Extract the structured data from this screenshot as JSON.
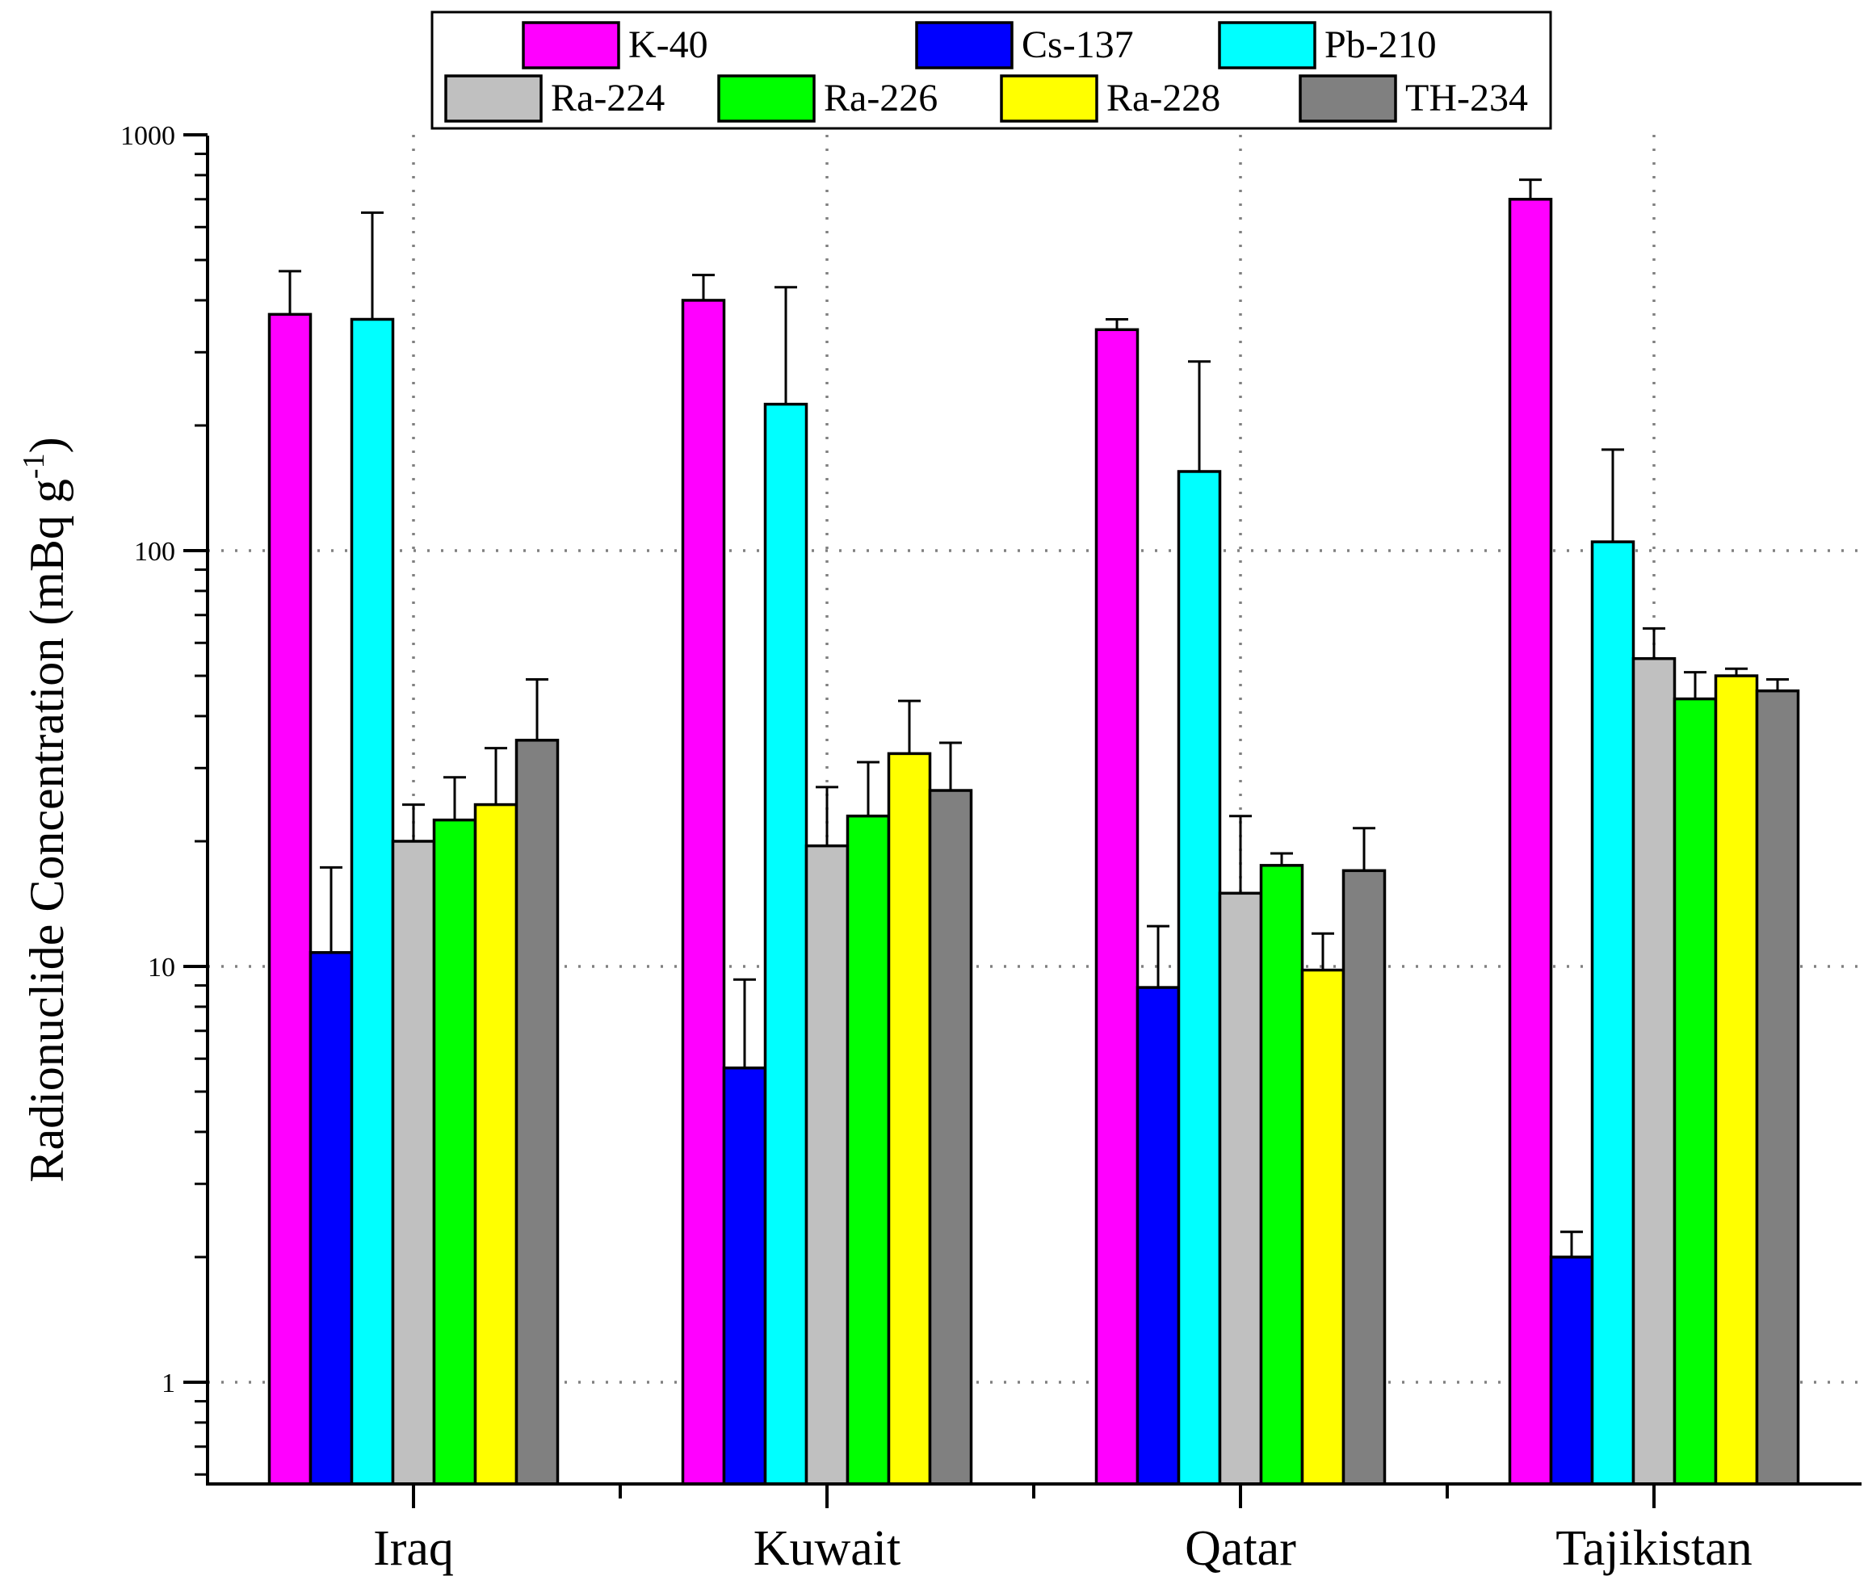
{
  "chart_data": {
    "type": "bar",
    "categories": [
      "Iraq",
      "Kuwait",
      "Qatar",
      "Tajikistan"
    ],
    "series": [
      {
        "name": "K-40",
        "color": "#FF00FF",
        "values": [
          370,
          400,
          340,
          700
        ],
        "errors": [
          100,
          60,
          20,
          80
        ]
      },
      {
        "name": "Cs-137",
        "color": "#0000FF",
        "values": [
          10.8,
          5.7,
          8.9,
          2.0
        ],
        "errors": [
          6.5,
          3.6,
          3.6,
          0.3
        ]
      },
      {
        "name": "Pb-210",
        "color": "#00FFFF",
        "values": [
          360,
          225,
          155,
          105
        ],
        "errors": [
          290,
          205,
          130,
          70
        ]
      },
      {
        "name": "Ra-224",
        "color": "#C0C0C0",
        "values": [
          20,
          19.5,
          15,
          55
        ],
        "errors": [
          4.5,
          7.5,
          8,
          10
        ]
      },
      {
        "name": "Ra-226",
        "color": "#00FF00",
        "values": [
          22.5,
          23,
          17.5,
          44
        ],
        "errors": [
          6,
          8,
          1.2,
          7
        ]
      },
      {
        "name": "Ra-228",
        "color": "#FFFF00",
        "values": [
          24.5,
          32.5,
          9.8,
          50
        ],
        "errors": [
          9,
          11,
          2.2,
          2
        ]
      },
      {
        "name": "TH-234",
        "color": "#808080",
        "values": [
          35,
          26.5,
          17,
          46
        ],
        "errors": [
          14,
          8,
          4.5,
          3
        ]
      }
    ],
    "ylabel_main": "Radionuclide Concentration (mBq g",
    "ylabel_sup": "-1",
    "ylabel_close": ")",
    "xlabel": "",
    "yscale": "log",
    "ylim": [
      0.6,
      1000
    ],
    "yticks": [
      "1",
      "10",
      "100",
      "1000"
    ],
    "grid": "dotted",
    "legend_position": "top"
  }
}
